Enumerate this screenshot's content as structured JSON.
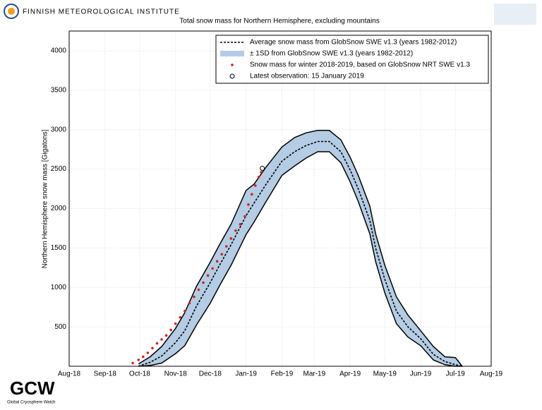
{
  "chart_data": {
    "type": "line",
    "title": "Total snow mass for Northern Hemisphere, excluding mountains",
    "y_label": "Northern Hemisphere snow mass [Gigatons]",
    "xlim": [
      0,
      365
    ],
    "xticks": [
      {
        "value": 0,
        "label": "Aug-18"
      },
      {
        "value": 31,
        "label": "Sep-18"
      },
      {
        "value": 61,
        "label": "Oct-18"
      },
      {
        "value": 92,
        "label": "Nov-18"
      },
      {
        "value": 122,
        "label": "Dec-18"
      },
      {
        "value": 153,
        "label": "Jan-19"
      },
      {
        "value": 184,
        "label": "Feb-19"
      },
      {
        "value": 212,
        "label": "Mar-19"
      },
      {
        "value": 243,
        "label": "Apr-19"
      },
      {
        "value": 273,
        "label": "May-19"
      },
      {
        "value": 304,
        "label": "Jun-19"
      },
      {
        "value": 334,
        "label": "Jul-19"
      },
      {
        "value": 365,
        "label": "Aug-19"
      }
    ],
    "ylim": [
      0,
      4250
    ],
    "yticks": [
      500,
      1000,
      1500,
      2000,
      2500,
      3000,
      3500,
      4000
    ],
    "grid": true,
    "legend": "upper right",
    "series": [
      {
        "name": "Average snow mass from GlobSnow SWE v1.3 (years 1982-2012)",
        "style": "dashed",
        "color": "#000000",
        "x": [
          60,
          70,
          80,
          92,
          100,
          110,
          122,
          130,
          140,
          153,
          160,
          170,
          184,
          195,
          205,
          215,
          225,
          235,
          243,
          250,
          260,
          265,
          273,
          283,
          293,
          304,
          315,
          325,
          334,
          340
        ],
        "values": [
          0,
          50,
          130,
          300,
          450,
          760,
          1060,
          1280,
          1540,
          1910,
          2070,
          2300,
          2600,
          2720,
          2800,
          2850,
          2850,
          2720,
          2490,
          2250,
          1850,
          1500,
          1100,
          700,
          500,
          350,
          150,
          60,
          20,
          0
        ]
      },
      {
        "name": "± 1SD from GlobSnow SWE v1.3 (years 1982-2012)",
        "style": "band",
        "color": "#b4cce4",
        "x": [
          60,
          70,
          80,
          92,
          100,
          110,
          122,
          130,
          140,
          153,
          160,
          170,
          184,
          195,
          205,
          215,
          225,
          235,
          243,
          250,
          260,
          265,
          273,
          283,
          293,
          304,
          315,
          325,
          334,
          340
        ],
        "upper": [
          30,
          120,
          250,
          480,
          680,
          1010,
          1320,
          1540,
          1800,
          2230,
          2310,
          2520,
          2780,
          2900,
          2960,
          2990,
          2990,
          2870,
          2650,
          2420,
          2030,
          1680,
          1280,
          880,
          650,
          450,
          250,
          120,
          110,
          0
        ],
        "lower": [
          0,
          10,
          40,
          160,
          260,
          520,
          800,
          1020,
          1280,
          1670,
          1830,
          2080,
          2420,
          2540,
          2640,
          2720,
          2720,
          2580,
          2340,
          2090,
          1680,
          1330,
          930,
          540,
          370,
          260,
          80,
          20,
          0,
          0
        ]
      },
      {
        "name": "Snow mass for winter 2018-2019, based on GlobSnow NRT SWE v1.3",
        "style": "dots",
        "color": "#d42020",
        "x": [
          55,
          60,
          64,
          68,
          72,
          76,
          80,
          84,
          88,
          92,
          96,
          100,
          104,
          108,
          112,
          116,
          120,
          124,
          128,
          132,
          136,
          140,
          144,
          148,
          152,
          155,
          158,
          161,
          164,
          166
        ],
        "values": [
          40,
          80,
          120,
          170,
          230,
          290,
          340,
          390,
          460,
          540,
          620,
          700,
          800,
          880,
          970,
          1060,
          1150,
          1240,
          1330,
          1420,
          1520,
          1620,
          1720,
          1800,
          1900,
          2050,
          2180,
          2290,
          2400,
          2460
        ]
      },
      {
        "name": "Latest observation: 15 January 2019",
        "style": "circle",
        "color": "#000000",
        "x": [
          167
        ],
        "values": [
          2510
        ]
      }
    ]
  },
  "logos": {
    "fmi": "FINNISH METEOROLOGICAL INSTITUTE",
    "gcw": "GCW",
    "gcw_sub": "Global Cryosphere Watch"
  }
}
